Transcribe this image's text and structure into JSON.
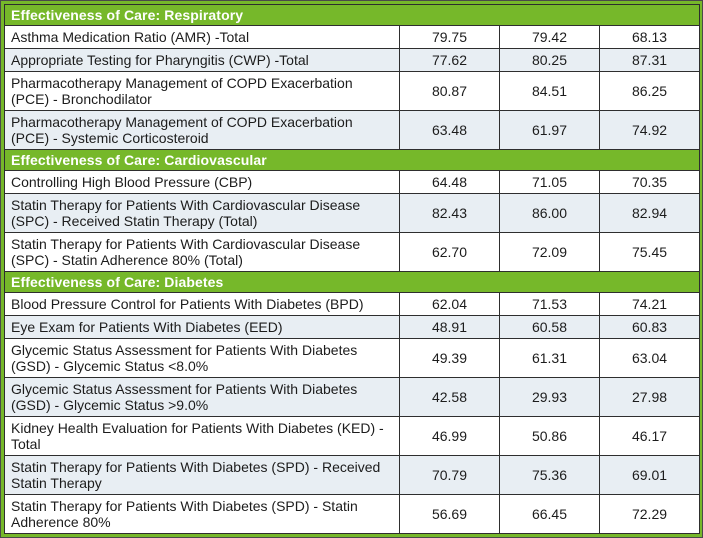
{
  "colors": {
    "section_green": "#76b82a",
    "banded_row": "#e8eef3",
    "plain_row": "#ffffff",
    "border": "#2e2e2e",
    "text": "#1c1c1c",
    "section_header_text": "#ffffff"
  },
  "table": {
    "sections": [
      {
        "header": "Effectiveness of Care: Respiratory",
        "rows": [
          {
            "name": "Asthma Medication Ratio (AMR) -Total",
            "values": [
              "79.75",
              "79.42",
              "68.13"
            ]
          },
          {
            "name": "Appropriate Testing for Pharyngitis (CWP) -Total",
            "values": [
              "77.62",
              "80.25",
              "87.31"
            ]
          },
          {
            "name": "Pharmacotherapy Management of COPD Exacerbation (PCE) - Bronchodilator",
            "values": [
              "80.87",
              "84.51",
              "86.25"
            ]
          },
          {
            "name": "Pharmacotherapy Management of COPD Exacerbation (PCE) - Systemic Corticosteroid",
            "values": [
              "63.48",
              "61.97",
              "74.92"
            ]
          }
        ]
      },
      {
        "header": "Effectiveness of Care: Cardiovascular",
        "rows": [
          {
            "name": "Controlling High Blood Pressure (CBP)",
            "values": [
              "64.48",
              "71.05",
              "70.35"
            ]
          },
          {
            "name": "Statin Therapy for Patients With Cardiovascular Disease (SPC) - Received Statin Therapy (Total)",
            "values": [
              "82.43",
              "86.00",
              "82.94"
            ]
          },
          {
            "name": "Statin Therapy for Patients With Cardiovascular Disease (SPC) - Statin Adherence 80% (Total)",
            "values": [
              "62.70",
              "72.09",
              "75.45"
            ]
          }
        ]
      },
      {
        "header": "Effectiveness of Care: Diabetes",
        "rows": [
          {
            "name": "Blood Pressure Control for Patients With Diabetes (BPD)",
            "values": [
              "62.04",
              "71.53",
              "74.21"
            ]
          },
          {
            "name": "Eye Exam for Patients With Diabetes (EED)",
            "values": [
              "48.91",
              "60.58",
              "60.83"
            ]
          },
          {
            "name": "Glycemic Status Assessment for Patients With Diabetes (GSD) - Glycemic Status <8.0%",
            "values": [
              "49.39",
              "61.31",
              "63.04"
            ]
          },
          {
            "name": "Glycemic Status Assessment for Patients With Diabetes (GSD) - Glycemic Status  >9.0%",
            "values": [
              "42.58",
              "29.93",
              "27.98"
            ]
          },
          {
            "name": "Kidney Health Evaluation for Patients With Diabetes (KED) - Total",
            "values": [
              "46.99",
              "50.86",
              "46.17"
            ]
          },
          {
            "name": "Statin Therapy for Patients With Diabetes (SPD) - Received Statin Therapy",
            "values": [
              "70.79",
              "75.36",
              "69.01"
            ]
          },
          {
            "name": "Statin Therapy for Patients With Diabetes (SPD) - Statin Adherence 80%",
            "values": [
              "56.69",
              "66.45",
              "72.29"
            ]
          }
        ]
      }
    ]
  }
}
